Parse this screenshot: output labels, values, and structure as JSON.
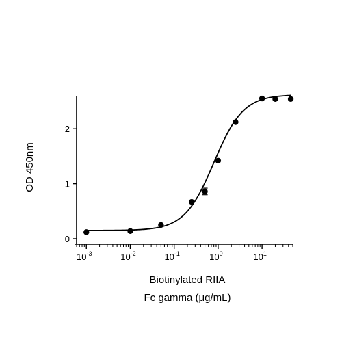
{
  "chart_data": {
    "type": "scatter",
    "xscale": "log10",
    "xlabel_line1": "Biotinylated RIIA",
    "xlabel_line2": "Fc gamma (μg/mL)",
    "ylabel": "OD 450nm",
    "xlim": [
      0.0006,
      50
    ],
    "ylim": [
      0,
      2.6
    ],
    "x_ticks": [
      {
        "value": 0.001,
        "base": "10",
        "exp": "-3"
      },
      {
        "value": 0.01,
        "base": "10",
        "exp": "-2"
      },
      {
        "value": 0.1,
        "base": "10",
        "exp": "-1"
      },
      {
        "value": 1,
        "base": "10",
        "exp": "0"
      },
      {
        "value": 10,
        "base": "10",
        "exp": "1"
      }
    ],
    "y_ticks": [
      0,
      1,
      2
    ],
    "series": [
      {
        "x": [
          0.001,
          0.01,
          0.05,
          0.25,
          0.5,
          1,
          2.5,
          10,
          20,
          45
        ],
        "y": [
          0.12,
          0.14,
          0.25,
          0.67,
          0.86,
          1.42,
          2.12,
          2.55,
          2.54,
          2.54
        ],
        "err": [
          0,
          0,
          0,
          0,
          0.06,
          0,
          0,
          0,
          0,
          0
        ]
      }
    ],
    "fit": {
      "model": "4PL",
      "bottom": 0.15,
      "top": 2.62,
      "ec50": 0.8,
      "hill": 1.3
    },
    "grid": false,
    "legend": false
  }
}
